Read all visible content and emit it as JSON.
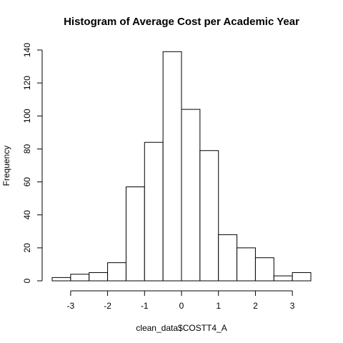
{
  "chart_data": {
    "type": "bar",
    "title": "Histogram of Average Cost per Academic Year",
    "xlabel": "clean_data$COSTT4_A",
    "ylabel": "Frequency",
    "bins": [
      {
        "x0": -3.5,
        "x1": -3.0,
        "count": 2
      },
      {
        "x0": -3.0,
        "x1": -2.5,
        "count": 4
      },
      {
        "x0": -2.5,
        "x1": -2.0,
        "count": 5
      },
      {
        "x0": -2.0,
        "x1": -1.5,
        "count": 11
      },
      {
        "x0": -1.5,
        "x1": -1.0,
        "count": 57
      },
      {
        "x0": -1.0,
        "x1": -0.5,
        "count": 84
      },
      {
        "x0": -0.5,
        "x1": 0.0,
        "count": 139
      },
      {
        "x0": 0.0,
        "x1": 0.5,
        "count": 104
      },
      {
        "x0": 0.5,
        "x1": 1.0,
        "count": 79
      },
      {
        "x0": 1.0,
        "x1": 1.5,
        "count": 28
      },
      {
        "x0": 1.5,
        "x1": 2.0,
        "count": 20
      },
      {
        "x0": 2.0,
        "x1": 2.5,
        "count": 14
      },
      {
        "x0": 2.5,
        "x1": 3.0,
        "count": 3
      },
      {
        "x0": 3.0,
        "x1": 3.5,
        "count": 5
      }
    ],
    "xticks": [
      -3,
      -2,
      -1,
      0,
      1,
      2,
      3
    ],
    "xtick_labels": [
      "-3",
      "-2",
      "-1",
      "0",
      "1",
      "2",
      "3"
    ],
    "yticks": [
      0,
      20,
      40,
      60,
      80,
      100,
      120,
      140
    ],
    "ytick_labels": [
      "0",
      "20",
      "40",
      "60",
      "80",
      "100",
      "120",
      "140"
    ],
    "xlim": [
      -3.5,
      3.5
    ],
    "ylim": [
      0,
      140
    ],
    "grid": false,
    "bar_fill": "#ffffff",
    "bar_stroke": "#000000"
  }
}
